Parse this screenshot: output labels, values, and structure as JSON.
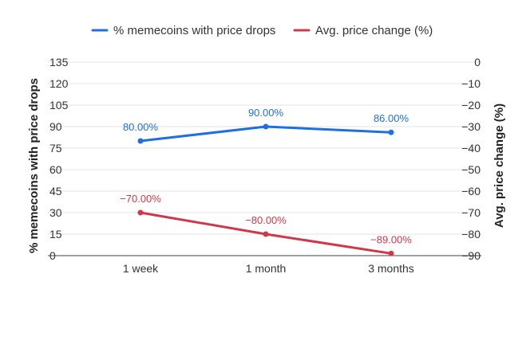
{
  "chart_data": {
    "type": "line",
    "categories": [
      "1 week",
      "1 month",
      "3 months"
    ],
    "series": [
      {
        "name": "% memecoins with price drops",
        "axis": "left",
        "color": "#1f6fe0",
        "values": [
          80,
          90,
          86
        ],
        "labels": [
          "80.00%",
          "90.00%",
          "86.00%"
        ]
      },
      {
        "name": "Avg. price change (%)",
        "axis": "right",
        "color": "#d0384a",
        "values": [
          -70,
          -80,
          -89
        ],
        "labels": [
          "−70.00%",
          "−80.00%",
          "−89.00%"
        ]
      }
    ],
    "y_left": {
      "label": "% memecoins with price drops",
      "ylim": [
        0,
        135
      ],
      "ticks": [
        "135",
        "120",
        "105",
        "90",
        "75",
        "60",
        "45",
        "30",
        "15",
        "0"
      ]
    },
    "y_right": {
      "label": "Avg. price change (%)",
      "ylim": [
        -90,
        0
      ],
      "ticks": [
        "0",
        "−10",
        "−20",
        "−30",
        "−40",
        "−50",
        "−60",
        "−70",
        "−80",
        "−90"
      ]
    },
    "legend_position": "top",
    "grid": true
  }
}
